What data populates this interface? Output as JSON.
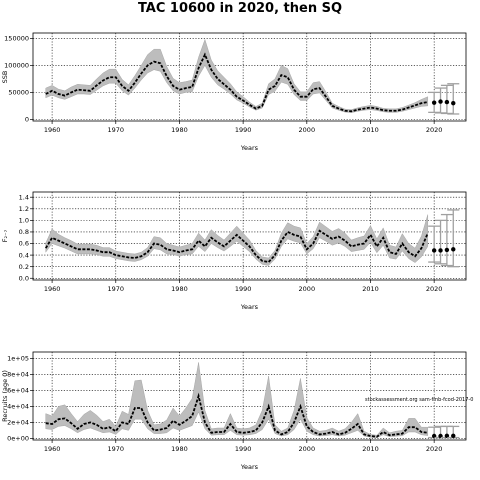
{
  "title": "TAC 10600 in 2020, then SQ",
  "annotation": "stockassessment.org  sam-fmb-fcod-2017-0",
  "colors": {
    "band": "#bdbdbd",
    "line": "#000000",
    "grid": "#000000",
    "whisker": "#a0a0a0"
  },
  "chart_data": [
    {
      "type": "line",
      "ylabel": "SSB",
      "xlabel": "Years",
      "xlim": [
        1957,
        2025
      ],
      "ylim": [
        -3000,
        160000
      ],
      "xticks": [
        1960,
        1970,
        1980,
        1990,
        2000,
        2010,
        2020
      ],
      "yticks": [
        0,
        50000,
        100000,
        150000
      ],
      "ytick_labels": [
        "0",
        "50000",
        "100000",
        "150000"
      ],
      "grid": true,
      "series": [
        {
          "x": [
            1959,
            1960,
            1961,
            1962,
            1963,
            1964,
            1965,
            1966,
            1967,
            1968,
            1969,
            1970,
            1971,
            1972,
            1973,
            1974,
            1975,
            1976,
            1977,
            1978,
            1979,
            1980,
            1981,
            1982,
            1983,
            1984,
            1985,
            1986,
            1987,
            1988,
            1989,
            1990,
            1991,
            1992,
            1993,
            1994,
            1995,
            1996,
            1997,
            1998,
            1999,
            2000,
            2001,
            2002,
            2003,
            2004,
            2005,
            2006,
            2007,
            2008,
            2009,
            2010,
            2011,
            2012,
            2013,
            2014,
            2015,
            2016,
            2017,
            2018,
            2019
          ],
          "y": [
            47000,
            53000,
            47000,
            44000,
            50000,
            55000,
            54000,
            53000,
            63000,
            72000,
            78000,
            78000,
            62000,
            53000,
            68000,
            85000,
            100000,
            107000,
            104000,
            80000,
            62000,
            55000,
            58000,
            60000,
            95000,
            120000,
            92000,
            75000,
            65000,
            55000,
            42000,
            35000,
            27000,
            20000,
            25000,
            55000,
            62000,
            82000,
            78000,
            55000,
            42000,
            42000,
            56000,
            58000,
            42000,
            25000,
            20000,
            16000,
            15000,
            18000,
            20000,
            22000,
            20000,
            17000,
            16000,
            16000,
            18000,
            22000,
            26000,
            30000,
            32000
          ],
          "lower": [
            40000,
            45000,
            40000,
            37000,
            42000,
            47000,
            47000,
            46000,
            54000,
            62000,
            67000,
            67000,
            53000,
            45000,
            58000,
            73000,
            86000,
            92000,
            89000,
            68000,
            53000,
            47000,
            50000,
            51000,
            80000,
            100000,
            78000,
            64000,
            56000,
            47000,
            36000,
            30000,
            23000,
            17000,
            21000,
            46000,
            52000,
            69000,
            65000,
            46000,
            35000,
            35000,
            47000,
            49000,
            35000,
            21000,
            17000,
            13500,
            12500,
            15000,
            17000,
            18000,
            16500,
            14000,
            13000,
            13000,
            15000,
            18000,
            21000,
            24000,
            25000
          ],
          "upper": [
            58000,
            63000,
            56000,
            53000,
            60000,
            65000,
            64000,
            63000,
            75000,
            86000,
            93000,
            93000,
            74000,
            64000,
            81000,
            100000,
            120000,
            130000,
            130000,
            98000,
            76000,
            68000,
            70000,
            73000,
            115000,
            148000,
            110000,
            90000,
            78000,
            66000,
            51000,
            42000,
            32000,
            24000,
            30000,
            66000,
            75000,
            100000,
            94000,
            66000,
            51000,
            51000,
            68000,
            70000,
            51000,
            30000,
            24000,
            19000,
            18000,
            21500,
            24000,
            26000,
            24000,
            20500,
            19500,
            19500,
            22000,
            26500,
            31000,
            37000,
            42000
          ]
        }
      ],
      "projection": {
        "x": [
          2020,
          2021,
          2022,
          2023
        ],
        "y": [
          31000,
          33000,
          32000,
          30000
        ],
        "lower": [
          13000,
          12000,
          11000,
          10000
        ],
        "upper": [
          50000,
          58000,
          63000,
          66000
        ]
      }
    },
    {
      "type": "line",
      "ylabel": "F₂₋₇",
      "xlabel": "Years",
      "xlim": [
        1957,
        2025
      ],
      "ylim": [
        -0.03,
        1.49
      ],
      "xticks": [
        1960,
        1970,
        1980,
        1990,
        2000,
        2010,
        2020
      ],
      "yticks": [
        0,
        0.2,
        0.4,
        0.6,
        0.8,
        1.0,
        1.2,
        1.4
      ],
      "ytick_labels": [
        "0.0",
        "0.2",
        "0.4",
        "0.6",
        "0.8",
        "1.0",
        "1.2",
        "1.4"
      ],
      "grid": true,
      "series": [
        {
          "x": [
            1959,
            1960,
            1961,
            1962,
            1963,
            1964,
            1965,
            1966,
            1967,
            1968,
            1969,
            1970,
            1971,
            1972,
            1973,
            1974,
            1975,
            1976,
            1977,
            1978,
            1979,
            1980,
            1981,
            1982,
            1983,
            1984,
            1985,
            1986,
            1987,
            1988,
            1989,
            1990,
            1991,
            1992,
            1993,
            1994,
            1995,
            1996,
            1997,
            1998,
            1999,
            2000,
            2001,
            2002,
            2003,
            2004,
            2005,
            2006,
            2007,
            2008,
            2009,
            2010,
            2011,
            2012,
            2013,
            2014,
            2015,
            2016,
            2017,
            2018,
            2019
          ],
          "y": [
            0.52,
            0.7,
            0.65,
            0.6,
            0.55,
            0.5,
            0.5,
            0.5,
            0.48,
            0.45,
            0.45,
            0.4,
            0.38,
            0.36,
            0.35,
            0.38,
            0.45,
            0.6,
            0.58,
            0.5,
            0.48,
            0.45,
            0.48,
            0.5,
            0.65,
            0.55,
            0.7,
            0.62,
            0.55,
            0.65,
            0.75,
            0.65,
            0.55,
            0.4,
            0.3,
            0.28,
            0.4,
            0.65,
            0.8,
            0.75,
            0.72,
            0.5,
            0.6,
            0.82,
            0.75,
            0.68,
            0.72,
            0.65,
            0.55,
            0.58,
            0.6,
            0.75,
            0.55,
            0.7,
            0.45,
            0.42,
            0.6,
            0.45,
            0.38,
            0.52,
            0.78
          ],
          "lower": [
            0.45,
            0.6,
            0.56,
            0.52,
            0.47,
            0.42,
            0.42,
            0.42,
            0.41,
            0.38,
            0.38,
            0.34,
            0.32,
            0.3,
            0.29,
            0.32,
            0.38,
            0.51,
            0.49,
            0.42,
            0.41,
            0.38,
            0.41,
            0.42,
            0.55,
            0.46,
            0.6,
            0.53,
            0.47,
            0.55,
            0.64,
            0.55,
            0.46,
            0.33,
            0.24,
            0.22,
            0.33,
            0.55,
            0.68,
            0.64,
            0.61,
            0.42,
            0.51,
            0.7,
            0.64,
            0.57,
            0.61,
            0.55,
            0.46,
            0.48,
            0.5,
            0.62,
            0.44,
            0.57,
            0.35,
            0.33,
            0.47,
            0.34,
            0.27,
            0.37,
            0.55
          ],
          "upper": [
            0.61,
            0.85,
            0.76,
            0.7,
            0.65,
            0.59,
            0.59,
            0.59,
            0.57,
            0.53,
            0.53,
            0.47,
            0.45,
            0.43,
            0.42,
            0.45,
            0.53,
            0.72,
            0.7,
            0.6,
            0.57,
            0.54,
            0.57,
            0.6,
            0.78,
            0.66,
            0.84,
            0.74,
            0.66,
            0.78,
            0.9,
            0.78,
            0.66,
            0.48,
            0.37,
            0.35,
            0.48,
            0.78,
            0.96,
            0.9,
            0.87,
            0.6,
            0.72,
            0.97,
            0.89,
            0.81,
            0.86,
            0.78,
            0.66,
            0.7,
            0.73,
            0.91,
            0.68,
            0.87,
            0.57,
            0.54,
            0.77,
            0.6,
            0.52,
            0.73,
            1.1
          ]
        }
      ],
      "projection": {
        "x": [
          2020,
          2021,
          2022,
          2023
        ],
        "y": [
          0.48,
          0.48,
          0.49,
          0.5
        ],
        "lower": [
          0.28,
          0.25,
          0.22,
          0.2
        ],
        "upper": [
          0.9,
          1.0,
          1.1,
          1.18
        ]
      }
    },
    {
      "type": "line",
      "ylabel": "Recruits (age 0)",
      "xlabel": "Years",
      "xlim": [
        1957,
        2025
      ],
      "ylim": [
        -2000,
        108000
      ],
      "xticks": [
        1960,
        1970,
        1980,
        1990,
        2000,
        2010,
        2020
      ],
      "yticks": [
        0,
        20000,
        40000,
        60000,
        80000,
        100000
      ],
      "ytick_labels": [
        "0e+00",
        "2e+04",
        "4e+04",
        "6e+04",
        "8e+04",
        "1e+05"
      ],
      "grid": true,
      "series": [
        {
          "x": [
            1959,
            1960,
            1961,
            1962,
            1963,
            1964,
            1965,
            1966,
            1967,
            1968,
            1969,
            1970,
            1971,
            1972,
            1973,
            1974,
            1975,
            1976,
            1977,
            1978,
            1979,
            1980,
            1981,
            1982,
            1983,
            1984,
            1985,
            1986,
            1987,
            1988,
            1989,
            1990,
            1991,
            1992,
            1993,
            1994,
            1995,
            1996,
            1997,
            1998,
            1999,
            2000,
            2001,
            2002,
            2003,
            2004,
            2005,
            2006,
            2007,
            2008,
            2009,
            2010,
            2011,
            2012,
            2013,
            2014,
            2015,
            2016,
            2017,
            2018,
            2019
          ],
          "y": [
            19000,
            18000,
            24000,
            25000,
            19000,
            12000,
            18000,
            20000,
            17000,
            12000,
            14000,
            9000,
            20000,
            18000,
            38000,
            38000,
            20000,
            10000,
            11000,
            13000,
            22000,
            17000,
            22000,
            28000,
            53000,
            20000,
            7000,
            8000,
            8000,
            18000,
            8000,
            7000,
            8000,
            10000,
            20000,
            40000,
            10000,
            5000,
            8000,
            20000,
            40000,
            15000,
            8000,
            5000,
            6000,
            8000,
            5000,
            7000,
            12000,
            18000,
            5000,
            3000,
            2000,
            8000,
            4000,
            5000,
            6000,
            14000,
            14000,
            8000,
            7000
          ],
          "lower": [
            12000,
            11000,
            15000,
            16000,
            12000,
            7000,
            11000,
            13000,
            10000,
            7000,
            8000,
            5000,
            12000,
            10000,
            24000,
            24000,
            12000,
            6000,
            6000,
            7000,
            13000,
            10000,
            13000,
            16000,
            33000,
            12000,
            4000,
            4500,
            4500,
            10000,
            4500,
            4000,
            4500,
            6000,
            11000,
            24000,
            6000,
            3000,
            4500,
            11000,
            24000,
            9000,
            4500,
            3000,
            3500,
            4500,
            3000,
            4000,
            7000,
            10000,
            3000,
            1500,
            1000,
            4500,
            2200,
            2800,
            3300,
            8000,
            8000,
            4500,
            3500
          ],
          "upper": [
            31000,
            28000,
            40000,
            42000,
            31000,
            21000,
            30000,
            35000,
            29000,
            21000,
            24000,
            15000,
            34000,
            30000,
            72000,
            73000,
            35000,
            17000,
            18000,
            23000,
            38000,
            28000,
            38000,
            50000,
            95000,
            35000,
            12000,
            13000,
            13000,
            31000,
            13000,
            12000,
            13000,
            17000,
            35000,
            78000,
            17000,
            9000,
            13000,
            35000,
            75000,
            26000,
            13000,
            9000,
            10000,
            13000,
            9000,
            12000,
            20000,
            31000,
            9000,
            5000,
            4000,
            13000,
            7000,
            9000,
            10000,
            25000,
            25000,
            14000,
            14000
          ]
        }
      ],
      "projection": {
        "x": [
          2020,
          2021,
          2022,
          2023
        ],
        "y": [
          3000,
          3000,
          3200,
          3200
        ],
        "lower": [
          1000,
          1000,
          1000,
          1000
        ],
        "upper": [
          14000,
          15000,
          15000,
          15000
        ]
      }
    }
  ]
}
